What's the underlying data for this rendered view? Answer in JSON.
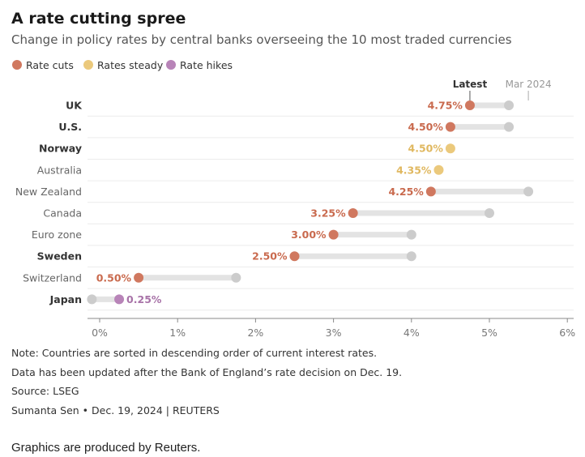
{
  "title": "A rate cutting spree",
  "subtitle": "Change in policy rates by central banks overseeing the 10 most traded currencies",
  "legend": [
    {
      "label": "Rate cuts",
      "color": "#d0785f"
    },
    {
      "label": "Rates steady",
      "color": "#ebc97c"
    },
    {
      "label": "Rate hikes",
      "color": "#b884b8"
    }
  ],
  "column_headers": {
    "latest": "Latest",
    "previous": "Mar 2024"
  },
  "chart_data": {
    "type": "dot",
    "x_ticks": [
      "0%",
      "1%",
      "2%",
      "3%",
      "4%",
      "5%",
      "6%"
    ],
    "xlim": [
      0,
      6
    ],
    "series": [
      {
        "name": "Latest",
        "values": [
          4.75,
          4.5,
          4.5,
          4.35,
          4.25,
          3.25,
          3.0,
          2.5,
          0.5,
          0.25
        ]
      },
      {
        "name": "Mar 2024",
        "values": [
          5.25,
          5.25,
          4.5,
          4.35,
          5.5,
          5.0,
          4.0,
          4.0,
          1.75,
          -0.1
        ]
      }
    ],
    "rows": [
      {
        "country": "UK",
        "bold": true,
        "latest": 4.75,
        "previous": 5.25,
        "label": "4.75%",
        "status": "cut"
      },
      {
        "country": "U.S.",
        "bold": true,
        "latest": 4.5,
        "previous": 5.25,
        "label": "4.50%",
        "status": "cut"
      },
      {
        "country": "Norway",
        "bold": true,
        "latest": 4.5,
        "previous": 4.5,
        "label": "4.50%",
        "status": "steady"
      },
      {
        "country": "Australia",
        "bold": false,
        "latest": 4.35,
        "previous": 4.35,
        "label": "4.35%",
        "status": "steady"
      },
      {
        "country": "New Zealand",
        "bold": false,
        "latest": 4.25,
        "previous": 5.5,
        "label": "4.25%",
        "status": "cut"
      },
      {
        "country": "Canada",
        "bold": false,
        "latest": 3.25,
        "previous": 5.0,
        "label": "3.25%",
        "status": "cut"
      },
      {
        "country": "Euro zone",
        "bold": false,
        "latest": 3.0,
        "previous": 4.0,
        "label": "3.00%",
        "status": "cut"
      },
      {
        "country": "Sweden",
        "bold": true,
        "latest": 2.5,
        "previous": 4.0,
        "label": "2.50%",
        "status": "cut"
      },
      {
        "country": "Switzerland",
        "bold": false,
        "latest": 0.5,
        "previous": 1.75,
        "label": "0.50%",
        "status": "cut"
      },
      {
        "country": "Japan",
        "bold": true,
        "latest": 0.25,
        "previous": -0.1,
        "label": "0.25%",
        "status": "hike"
      }
    ],
    "colors": {
      "cut": "#d0785f",
      "steady": "#ebc97c",
      "hike": "#b884b8",
      "previous": "#cccccc",
      "bar": "#e3e3e3",
      "cut_label": "#c96a4e",
      "steady_label": "#e0b860",
      "hike_label": "#a873a8"
    }
  },
  "notes": [
    "Note: Countries are sorted in descending order of current interest rates.",
    "Data has been updated after the Bank of England’s rate decision on Dec. 19.",
    "Source: LSEG",
    "Sumanta Sen • Dec. 19, 2024 | REUTERS"
  ],
  "credit": "Graphics are produced by Reuters."
}
